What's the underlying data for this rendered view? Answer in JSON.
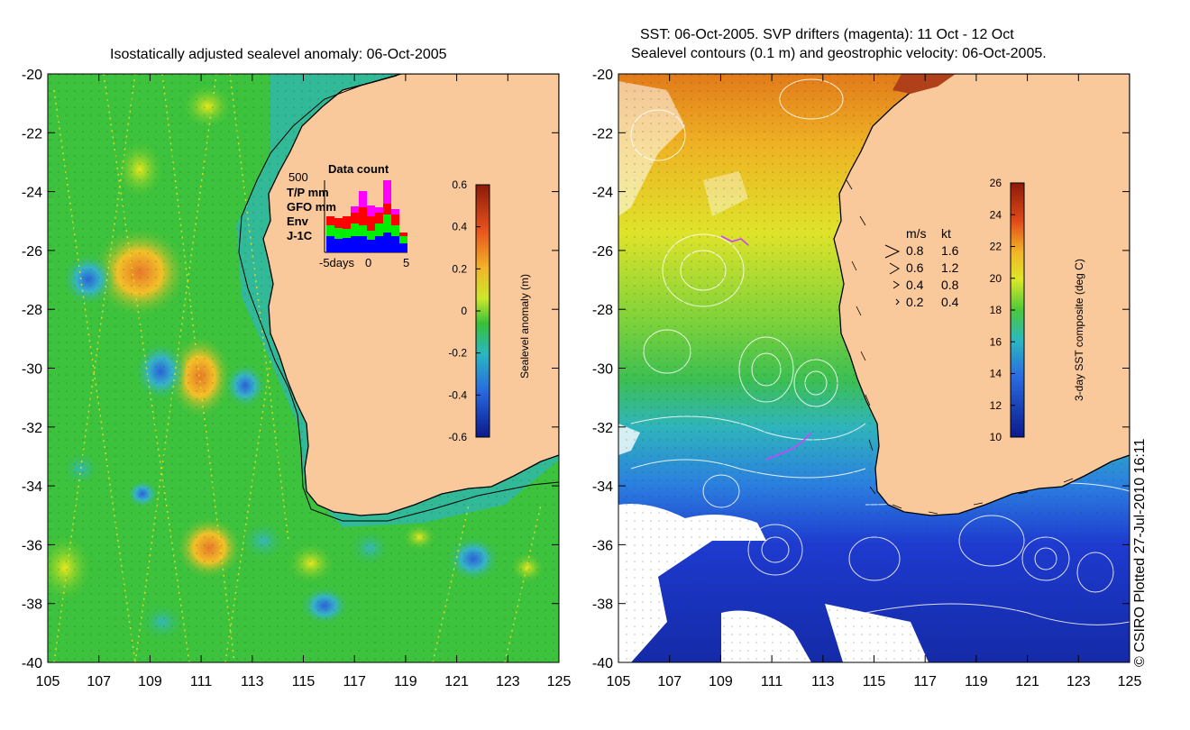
{
  "left_panel": {
    "title": "Isostatically adjusted sealevel anomaly: 06-Oct-2005",
    "colorbar": {
      "label": "Sealevel anomaly (m)",
      "ticks": [
        "0.6",
        "0.4",
        "0.2",
        "0",
        "-0.2",
        "-0.4",
        "-0.6"
      ],
      "range": [
        -0.6,
        0.6
      ]
    },
    "inset": {
      "title": "Data count",
      "ymax_label": "500",
      "x_labels": [
        "-5days",
        "0",
        "5"
      ],
      "legend": [
        {
          "label": "T/P mm",
          "color": "#ff00ff"
        },
        {
          "label": "GFO mm",
          "color": "#ff0000"
        },
        {
          "label": "Env",
          "color": "#00ee00"
        },
        {
          "label": "J-1C",
          "color": "#0000ff"
        }
      ]
    }
  },
  "right_panel": {
    "title_line1": "SST: 06-Oct-2005. SVP drifters (magenta): 11 Oct - 12 Oct",
    "title_line2": "Sealevel contours (0.1 m) and geostrophic velocity: 06-Oct-2005.",
    "colorbar": {
      "label": "3-day SST composite (deg C)",
      "ticks": [
        "26",
        "24",
        "22",
        "20",
        "18",
        "16",
        "14",
        "12",
        "10"
      ],
      "range": [
        10,
        26
      ]
    },
    "velocity_legend": {
      "header_ms": "m/s",
      "header_kt": "kt",
      "rows": [
        {
          "ms": "0.8",
          "kt": "1.6"
        },
        {
          "ms": "0.6",
          "kt": "1.2"
        },
        {
          "ms": "0.4",
          "kt": "0.8"
        },
        {
          "ms": "0.2",
          "kt": "0.4"
        }
      ]
    }
  },
  "axes": {
    "lat_ticks": [
      "-20",
      "-22",
      "-24",
      "-26",
      "-28",
      "-30",
      "-32",
      "-34",
      "-36",
      "-38",
      "-40"
    ],
    "lon_ticks": [
      "105",
      "107",
      "109",
      "111",
      "113",
      "115",
      "117",
      "119",
      "121",
      "123",
      "125"
    ]
  },
  "credit": "© CSIRO Plotted 27-Jul-2010 16:11",
  "colors": {
    "land": "#f9c89b",
    "ocean_left": "#3cc23c",
    "coastline": "#000000"
  }
}
